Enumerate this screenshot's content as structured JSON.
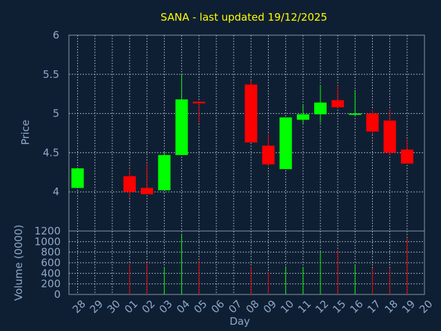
{
  "title": "SANA - last updated 19/12/2025",
  "colors": {
    "background": "#0f1f33",
    "up": "#00ff00",
    "down": "#ff0000",
    "axis_text": "#8fa9c8",
    "title": "#ffff00"
  },
  "chart_data": [
    {
      "type": "candlestick",
      "ylabel": "Price",
      "ylim": [
        3.5,
        6
      ],
      "yticks": [
        4,
        4.5,
        5,
        5.5,
        6
      ],
      "grid": true,
      "x": [
        "28",
        "29",
        "30",
        "01",
        "02",
        "03",
        "04",
        "05",
        "06",
        "07",
        "08",
        "09",
        "10",
        "11",
        "12",
        "15",
        "16",
        "17",
        "18",
        "19"
      ],
      "candles": [
        {
          "x": "28",
          "open": 4.05,
          "high": 4.3,
          "low": 4.05,
          "close": 4.3
        },
        {
          "x": "01",
          "open": 4.2,
          "high": 4.28,
          "low": 3.93,
          "close": 4.0
        },
        {
          "x": "02",
          "open": 4.05,
          "high": 4.37,
          "low": 3.97,
          "close": 3.97
        },
        {
          "x": "03",
          "open": 4.02,
          "high": 4.52,
          "low": 4.02,
          "close": 4.47
        },
        {
          "x": "04",
          "open": 4.47,
          "high": 5.5,
          "low": 4.47,
          "close": 5.18
        },
        {
          "x": "05",
          "open": 5.15,
          "high": 5.16,
          "low": 4.88,
          "close": 5.13
        },
        {
          "x": "08",
          "open": 5.37,
          "high": 5.42,
          "low": 4.63,
          "close": 4.63
        },
        {
          "x": "09",
          "open": 4.59,
          "high": 4.74,
          "low": 4.33,
          "close": 4.35
        },
        {
          "x": "10",
          "open": 4.29,
          "high": 4.95,
          "low": 4.29,
          "close": 4.95
        },
        {
          "x": "11",
          "open": 4.92,
          "high": 5.11,
          "low": 4.87,
          "close": 4.99
        },
        {
          "x": "12",
          "open": 4.99,
          "high": 5.36,
          "low": 4.88,
          "close": 5.14
        },
        {
          "x": "15",
          "open": 5.17,
          "high": 5.36,
          "low": 5.06,
          "close": 5.08
        },
        {
          "x": "16",
          "open": 4.99,
          "high": 5.3,
          "low": 4.98,
          "close": 5.0
        },
        {
          "x": "17",
          "open": 5.0,
          "high": 5.05,
          "low": 4.73,
          "close": 4.77
        },
        {
          "x": "18",
          "open": 4.91,
          "high": 5.05,
          "low": 4.47,
          "close": 4.5
        },
        {
          "x": "19",
          "open": 4.54,
          "high": 4.67,
          "low": 4.36,
          "close": 4.36
        }
      ]
    },
    {
      "type": "bar",
      "xlabel": "Day",
      "ylabel": "Volume (0000)",
      "ylim": [
        0,
        1200
      ],
      "yticks": [
        0,
        200,
        400,
        600,
        800,
        1000,
        1200
      ],
      "grid": true,
      "x": [
        "28",
        "29",
        "30",
        "01",
        "02",
        "03",
        "04",
        "05",
        "06",
        "07",
        "08",
        "09",
        "10",
        "11",
        "12",
        "15",
        "16",
        "17",
        "18",
        "19"
      ],
      "bars": [
        {
          "x": "01",
          "value": 580,
          "direction": "down"
        },
        {
          "x": "02",
          "value": 600,
          "direction": "down"
        },
        {
          "x": "03",
          "value": 520,
          "direction": "up"
        },
        {
          "x": "04",
          "value": 1130,
          "direction": "up"
        },
        {
          "x": "05",
          "value": 640,
          "direction": "down"
        },
        {
          "x": "08",
          "value": 520,
          "direction": "down"
        },
        {
          "x": "09",
          "value": 430,
          "direction": "down"
        },
        {
          "x": "10",
          "value": 530,
          "direction": "up"
        },
        {
          "x": "11",
          "value": 510,
          "direction": "up"
        },
        {
          "x": "12",
          "value": 820,
          "direction": "up"
        },
        {
          "x": "15",
          "value": 840,
          "direction": "down"
        },
        {
          "x": "16",
          "value": 560,
          "direction": "up"
        },
        {
          "x": "17",
          "value": 490,
          "direction": "down"
        },
        {
          "x": "18",
          "value": 490,
          "direction": "down"
        },
        {
          "x": "19",
          "value": 1070,
          "direction": "down"
        }
      ]
    }
  ]
}
